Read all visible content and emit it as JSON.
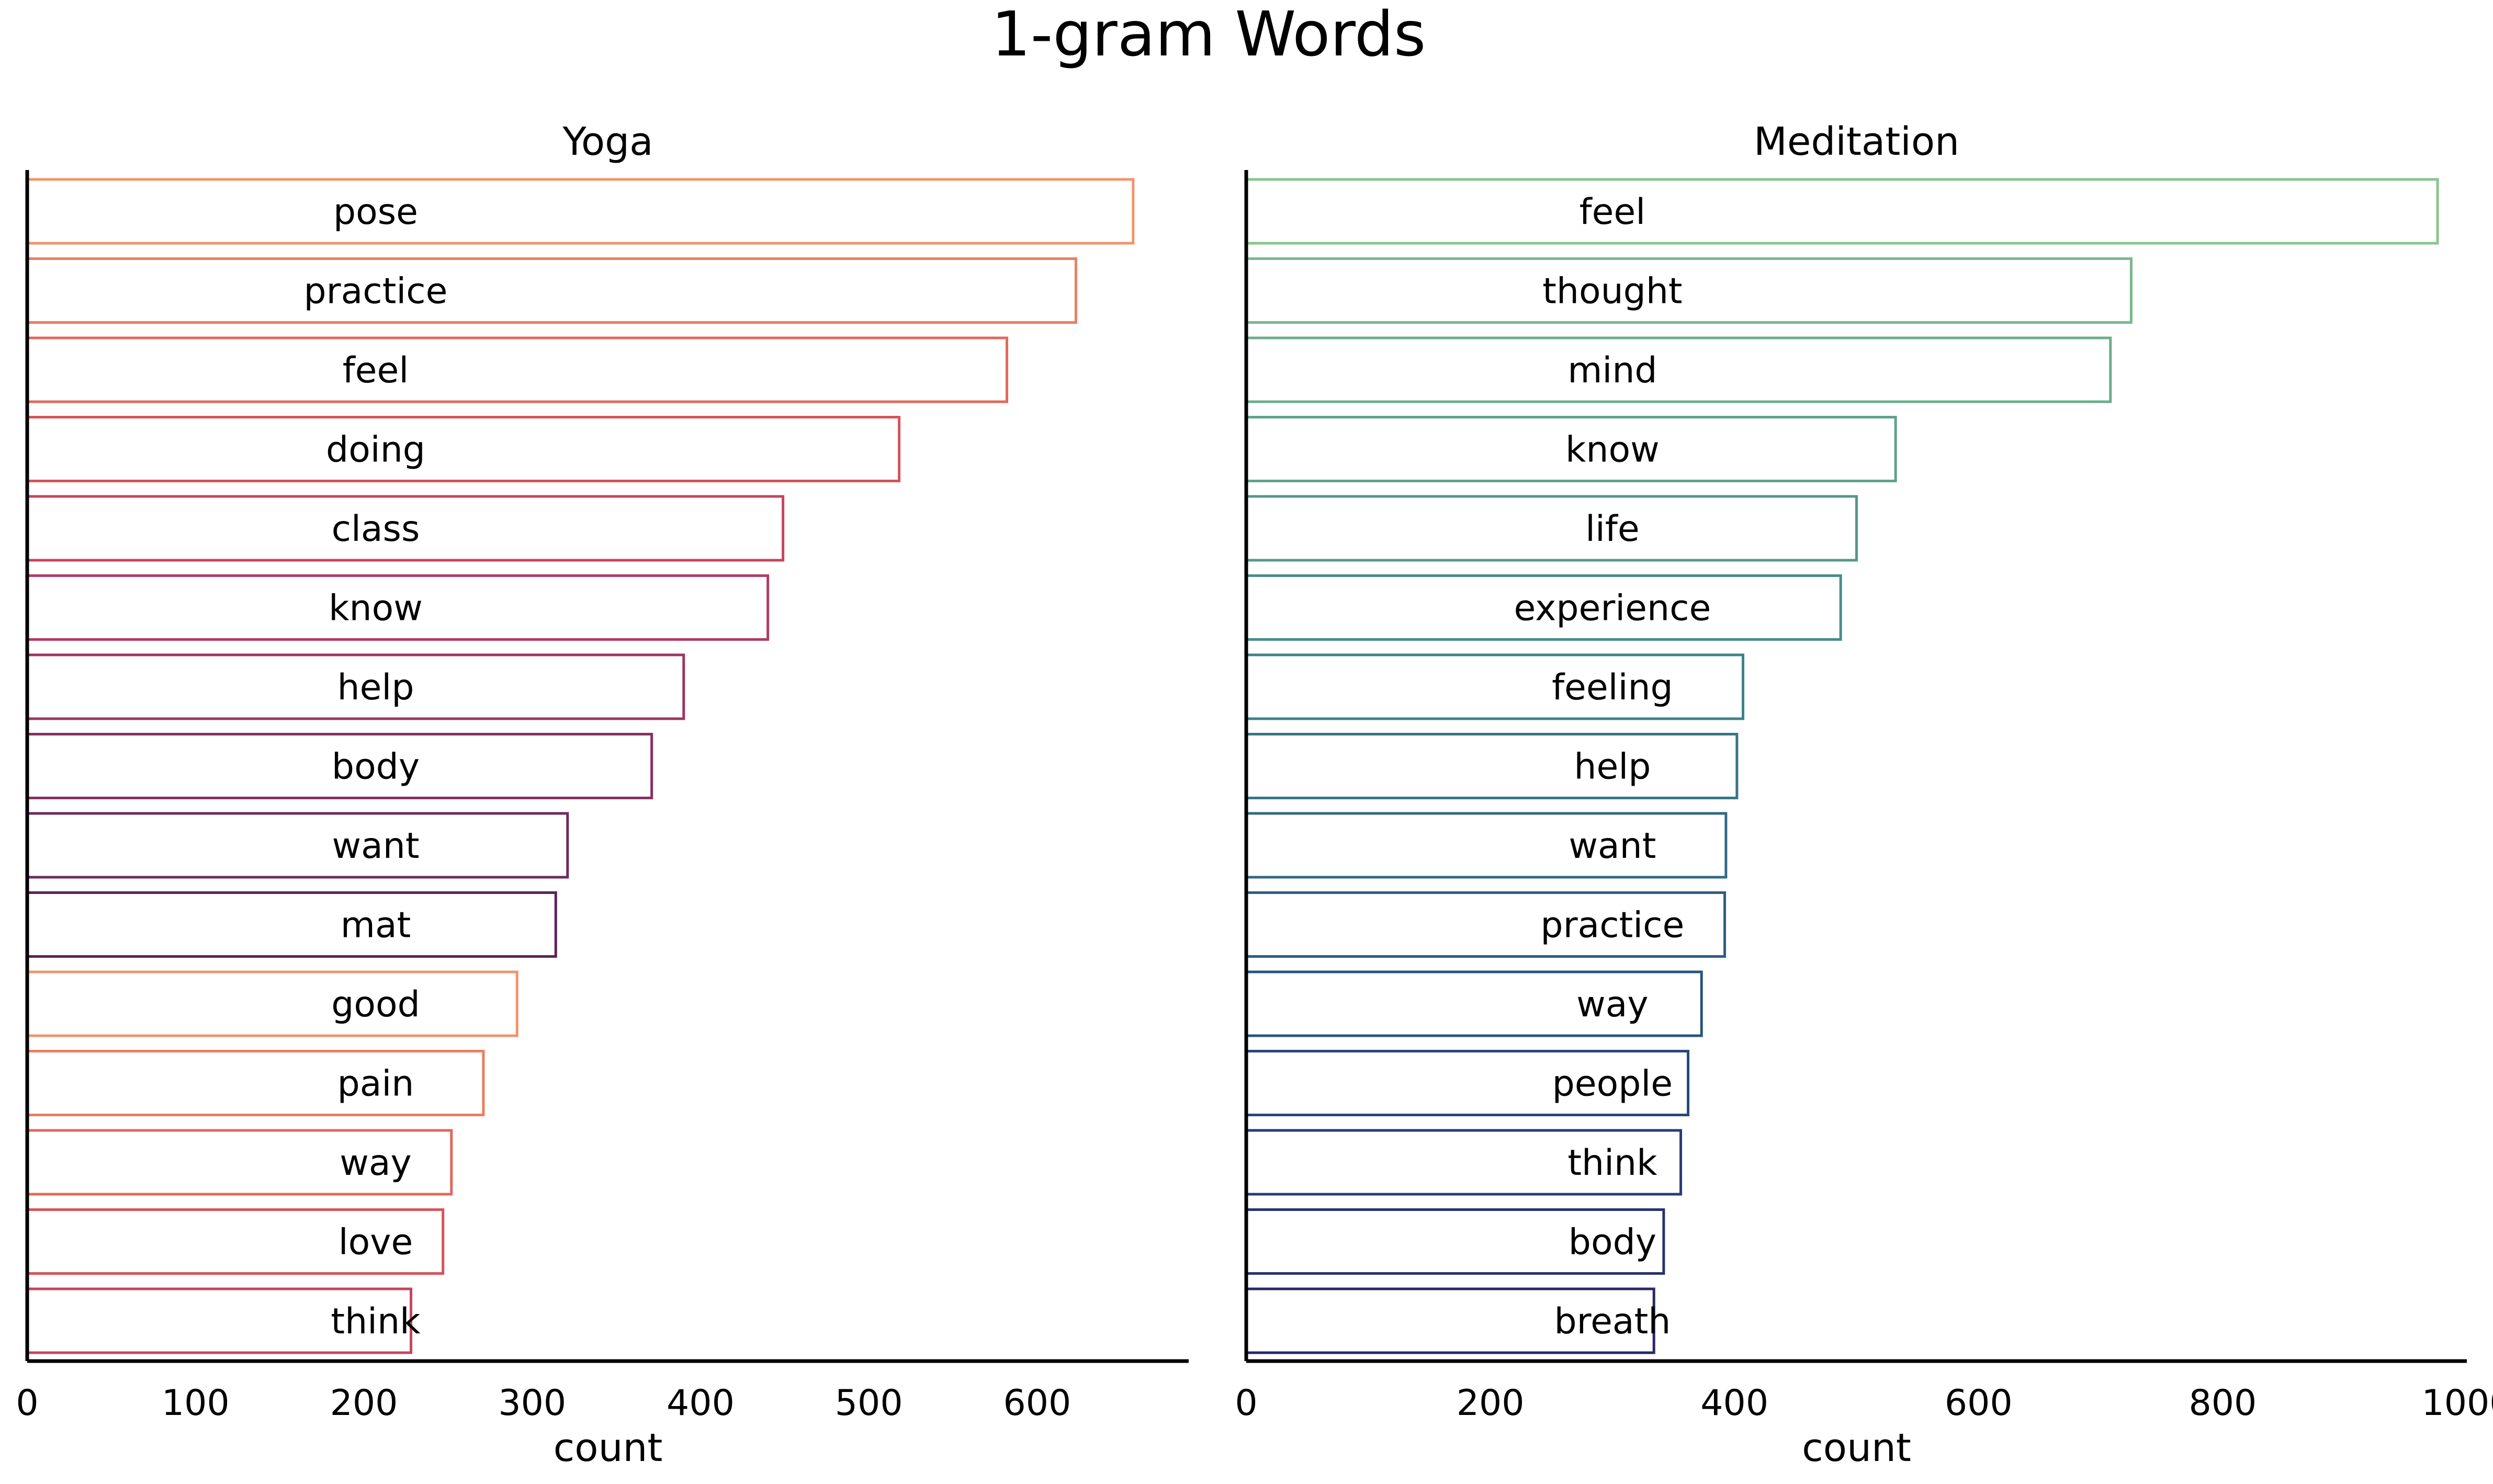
{
  "title": "1-gram Words",
  "chart_data": [
    {
      "type": "bar",
      "orientation": "horizontal",
      "title": "Yoga",
      "xlabel": "count",
      "ylabel": "",
      "xlim": [
        0,
        690
      ],
      "xticks": [
        0,
        100,
        200,
        300,
        400,
        500,
        600
      ],
      "grid": false,
      "labels_inside_bars": true,
      "categories": [
        "pose",
        "practice",
        "feel",
        "doing",
        "class",
        "know",
        "help",
        "body",
        "want",
        "mat",
        "good",
        "pain",
        "way",
        "love",
        "think"
      ],
      "values": [
        657,
        623,
        582,
        518,
        449,
        440,
        390,
        371,
        321,
        314,
        291,
        271,
        252,
        247,
        228
      ],
      "colors": [
        "#f0946c",
        "#ea7e61",
        "#e2685c",
        "#d6535a",
        "#c5455e",
        "#b23c62",
        "#9c3564",
        "#863063",
        "#6f2a5e",
        "#5b2456",
        "#f0946c",
        "#ea7e61",
        "#e2685c",
        "#d6535a",
        "#c5455e"
      ]
    },
    {
      "type": "bar",
      "orientation": "horizontal",
      "title": "Meditation",
      "xlabel": "count",
      "ylabel": "",
      "xlim": [
        0,
        1000
      ],
      "xticks": [
        0,
        200,
        400,
        600,
        800,
        1000
      ],
      "grid": false,
      "labels_inside_bars": true,
      "categories": [
        "feel",
        "thought",
        "mind",
        "know",
        "life",
        "experience",
        "feeling",
        "help",
        "want",
        "practice",
        "way",
        "people",
        "think",
        "body",
        "breath"
      ],
      "values": [
        976,
        725,
        708,
        532,
        500,
        487,
        407,
        402,
        393,
        392,
        373,
        362,
        356,
        342,
        334
      ],
      "colors": [
        "#89c48e",
        "#78b98c",
        "#6aae8c",
        "#5ea38b",
        "#53988b",
        "#488c8a",
        "#3f8089",
        "#377587",
        "#306985",
        "#2b5e83",
        "#28537f",
        "#28487b",
        "#283d75",
        "#28336e",
        "#272a65"
      ]
    }
  ]
}
